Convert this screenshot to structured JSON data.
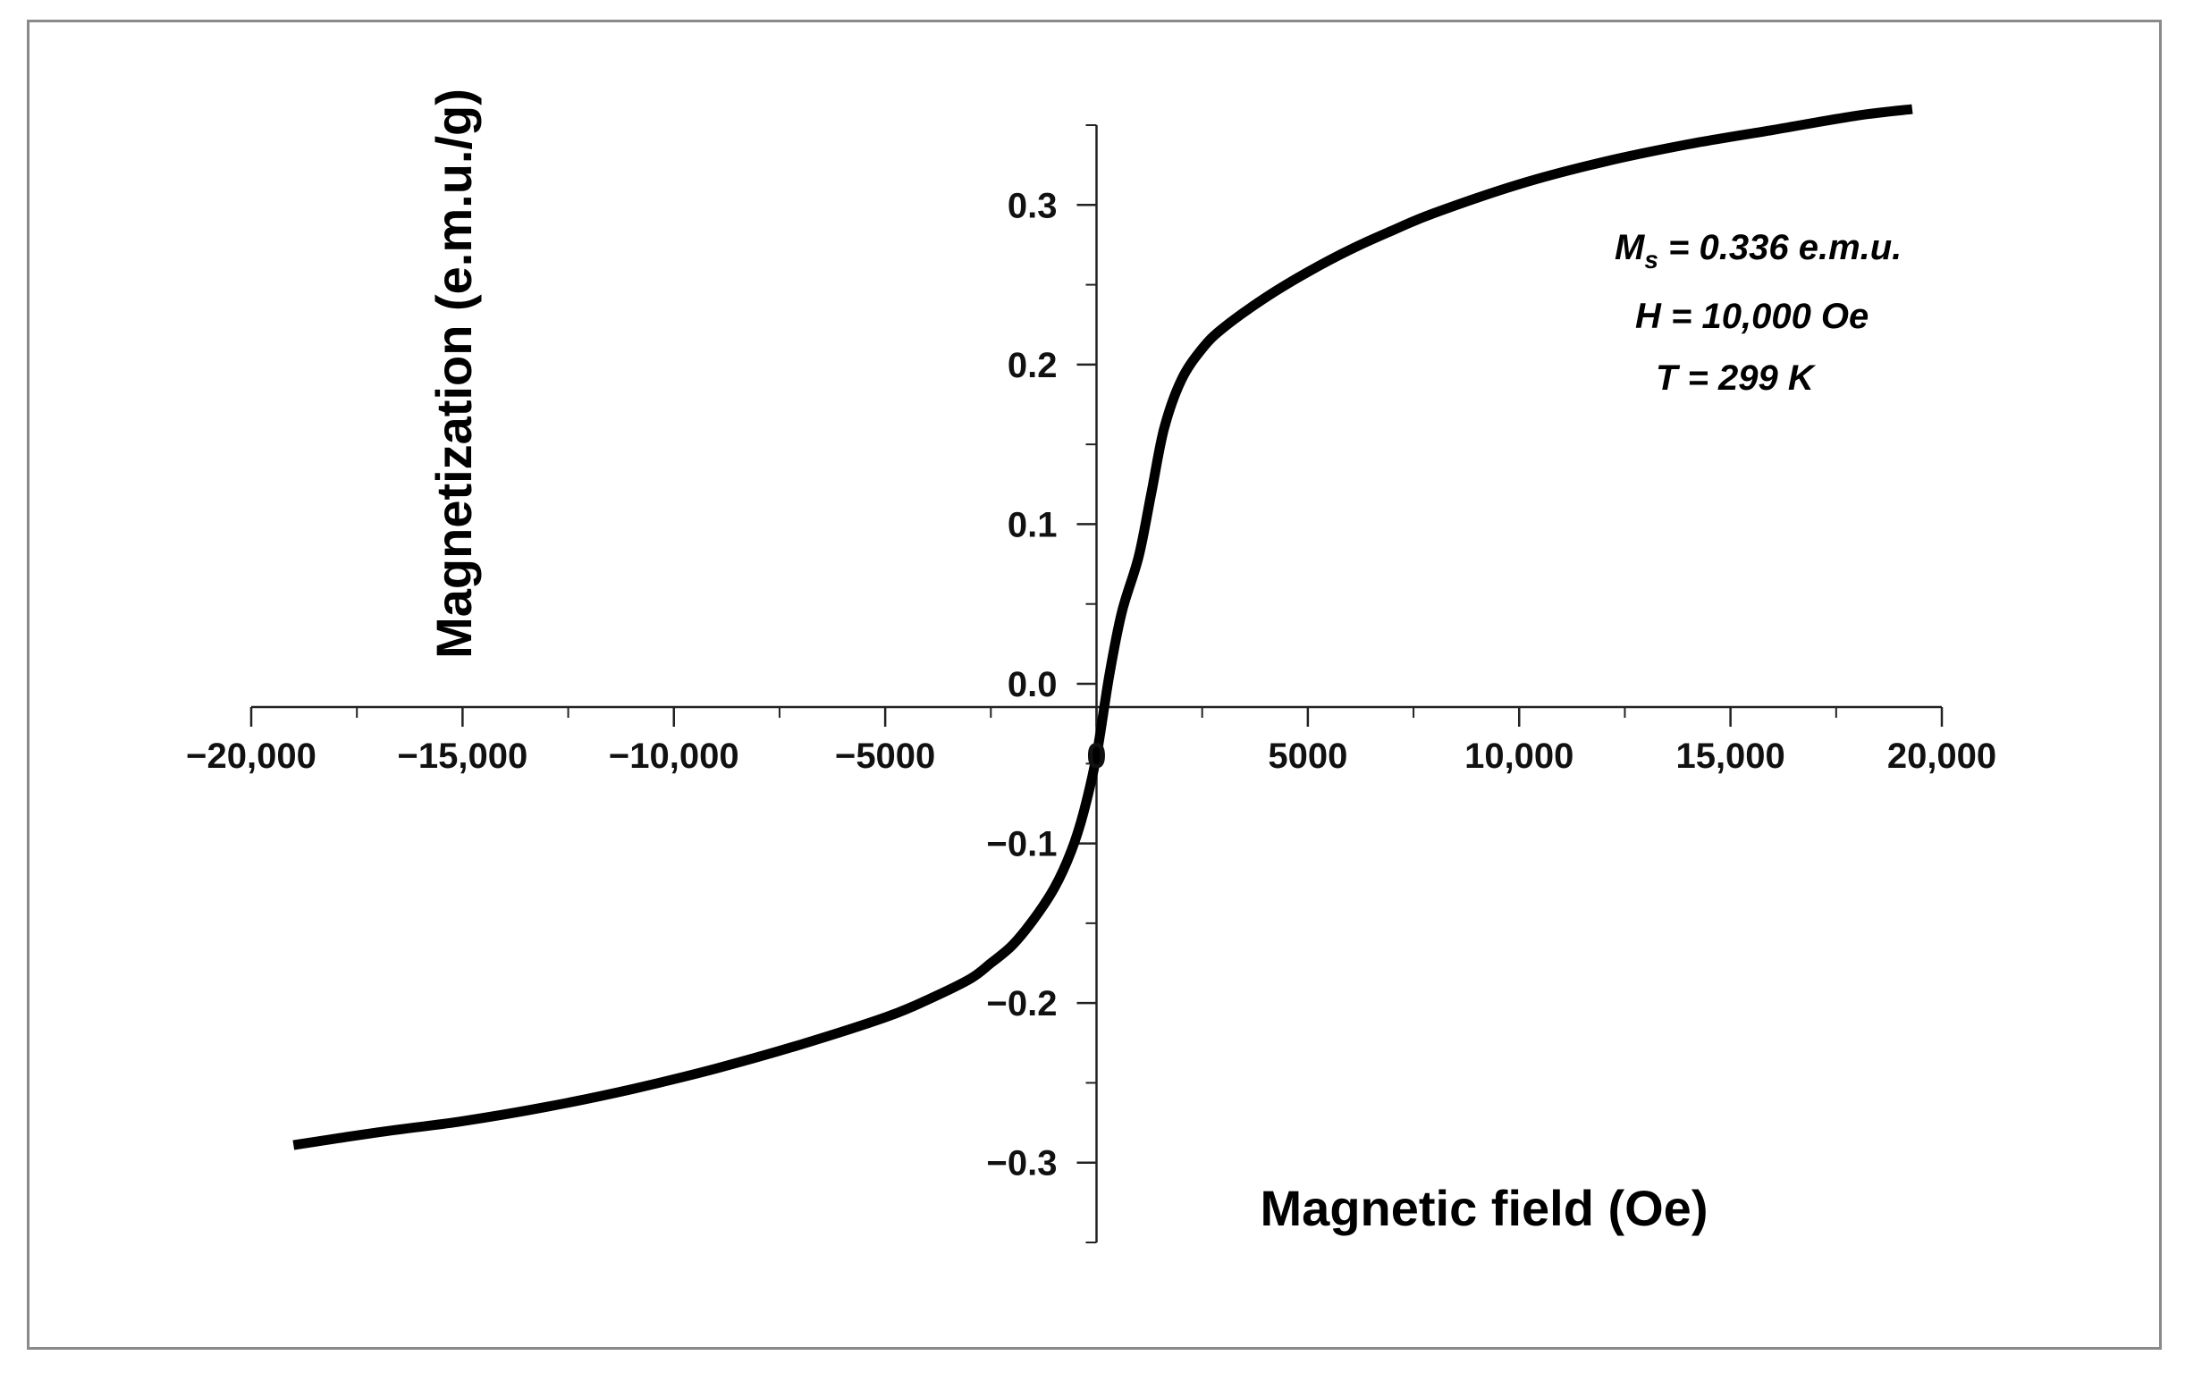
{
  "chart_data": {
    "type": "line",
    "xlabel": "Magnetic field (Oe)",
    "ylabel": "Magnetization (e.m.u./g)",
    "xlim": [
      -20000,
      20000
    ],
    "ylim": [
      -0.35,
      0.35
    ],
    "x_ticks": [
      {
        "value": -20000,
        "label": "−20,000"
      },
      {
        "value": -15000,
        "label": "−15,000"
      },
      {
        "value": -10000,
        "label": "−10,000"
      },
      {
        "value": -5000,
        "label": "−5000"
      },
      {
        "value": 0,
        "label": "0"
      },
      {
        "value": 5000,
        "label": "5000"
      },
      {
        "value": 10000,
        "label": "10,000"
      },
      {
        "value": 15000,
        "label": "15,000"
      },
      {
        "value": 20000,
        "label": "20,000"
      }
    ],
    "y_ticks": [
      {
        "value": 0.3,
        "label": "0.3"
      },
      {
        "value": 0.2,
        "label": "0.2"
      },
      {
        "value": 0.1,
        "label": "0.1"
      },
      {
        "value": 0.0,
        "label": "0.0"
      },
      {
        "value": -0.1,
        "label": "−0.1"
      },
      {
        "value": -0.2,
        "label": "−0.2"
      },
      {
        "value": -0.3,
        "label": "−0.3"
      }
    ],
    "annotations": [
      {
        "prefix": "M",
        "subscript": "s",
        "suffix": " = 0.336 e.m.u."
      },
      {
        "text": "H = 10,000 Oe"
      },
      {
        "text": "T = 299 K"
      }
    ],
    "series": [
      {
        "color": "#000000",
        "x": [
          -19000,
          -17000,
          -15000,
          -13000,
          -11000,
          -9000,
          -7000,
          -5000,
          -4000,
          -3000,
          -2500,
          -2000,
          -1500,
          -1000,
          -600,
          -300,
          0,
          300,
          600,
          1000,
          1300,
          1600,
          2000,
          2500,
          3000,
          4000,
          5000,
          6000,
          7000,
          8000,
          10000,
          12000,
          14000,
          16000,
          18000,
          19300
        ],
        "y": [
          -0.289,
          -0.281,
          -0.274,
          -0.265,
          -0.254,
          -0.241,
          -0.226,
          -0.209,
          -0.198,
          -0.185,
          -0.175,
          -0.164,
          -0.148,
          -0.128,
          -0.105,
          -0.08,
          -0.045,
          0.005,
          0.045,
          0.08,
          0.12,
          0.16,
          0.19,
          0.21,
          0.223,
          0.242,
          0.258,
          0.272,
          0.284,
          0.295,
          0.313,
          0.327,
          0.338,
          0.347,
          0.356,
          0.36
        ]
      }
    ]
  }
}
